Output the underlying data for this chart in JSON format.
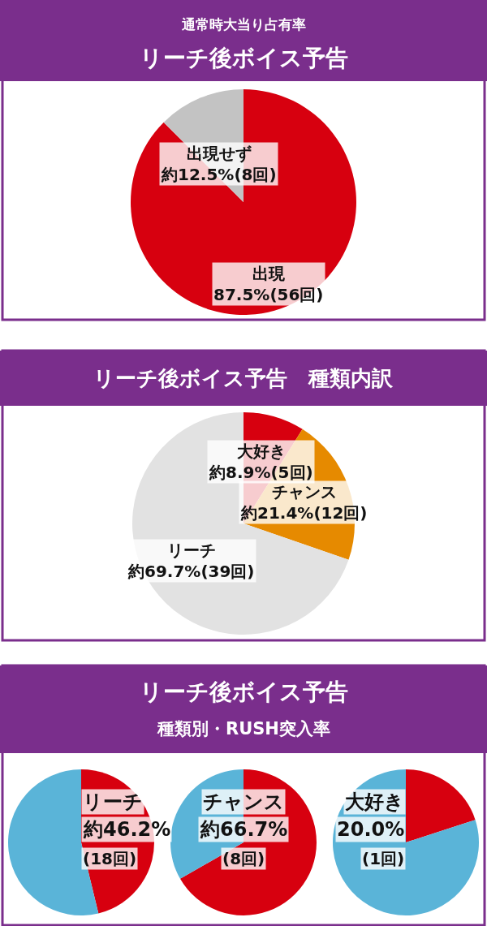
{
  "chart_data": [
    {
      "type": "pie",
      "title": "通常時大当り占有率",
      "subtitle": "リーチ後ボイス予告",
      "categories": [
        "出現",
        "出現せず"
      ],
      "values": [
        87.5,
        12.5
      ],
      "colors": [
        "#d7000f",
        "#c3c3c3"
      ],
      "value_labels": [
        "87.5%(56回)",
        "約12.5%(8回)"
      ],
      "legend": false
    },
    {
      "type": "pie",
      "title": "リーチ後ボイス予告　種類内訳",
      "categories": [
        "大好き",
        "チャンス",
        "リーチ"
      ],
      "values": [
        8.9,
        21.4,
        69.7
      ],
      "colors": [
        "#d7000f",
        "#e68a00",
        "#e2e2e2"
      ],
      "value_labels": [
        "約8.9%(5回)",
        "約21.4%(12回)",
        "約69.7%(39回)"
      ],
      "legend": false
    },
    {
      "type": "other",
      "title": "リーチ後ボイス予告",
      "subtitle": "種類別・RUSH突入率"
    },
    {
      "type": "pie",
      "categories": [
        null,
        null
      ],
      "values": [
        46.2,
        53.8
      ],
      "colors": [
        "#d7000f",
        "#5ab4d8"
      ],
      "annotations": [
        "リーチ",
        "約46.2%",
        "(18回)"
      ],
      "legend": false
    },
    {
      "type": "pie",
      "categories": [
        null,
        null
      ],
      "values": [
        66.7,
        33.3
      ],
      "colors": [
        "#d7000f",
        "#5ab4d8"
      ],
      "annotations": [
        "チャンス",
        "約66.7%",
        "(8回)"
      ],
      "legend": false
    },
    {
      "type": "pie",
      "categories": [
        null,
        null
      ],
      "values": [
        20.0,
        80.0
      ],
      "colors": [
        "#d7000f",
        "#5ab4d8"
      ],
      "annotations": [
        "大好き",
        "20.0%",
        "(1回)"
      ],
      "legend": false
    }
  ]
}
